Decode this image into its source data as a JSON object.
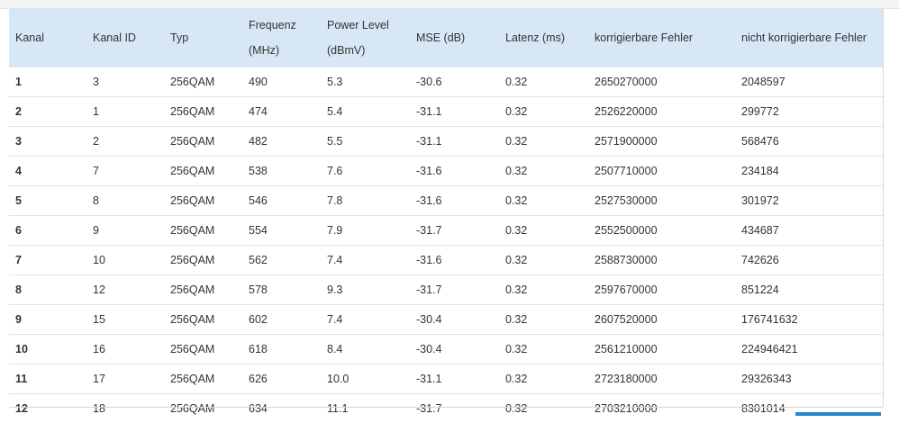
{
  "table": {
    "header": [
      "Kanal",
      "Kanal ID",
      "Typ",
      [
        "Frequenz",
        "(MHz)"
      ],
      [
        "Power Level",
        "(dBmV)"
      ],
      "MSE (dB)",
      "Latenz (ms)",
      "korrigierbare Fehler",
      "nicht korrigierbare Fehler"
    ],
    "rows": [
      [
        "1",
        "3",
        "256QAM",
        "490",
        "5.3",
        "-30.6",
        "0.32",
        "2650270000",
        "2048597"
      ],
      [
        "2",
        "1",
        "256QAM",
        "474",
        "5.4",
        "-31.1",
        "0.32",
        "2526220000",
        "299772"
      ],
      [
        "3",
        "2",
        "256QAM",
        "482",
        "5.5",
        "-31.1",
        "0.32",
        "2571900000",
        "568476"
      ],
      [
        "4",
        "7",
        "256QAM",
        "538",
        "7.6",
        "-31.6",
        "0.32",
        "2507710000",
        "234184"
      ],
      [
        "5",
        "8",
        "256QAM",
        "546",
        "7.8",
        "-31.6",
        "0.32",
        "2527530000",
        "301972"
      ],
      [
        "6",
        "9",
        "256QAM",
        "554",
        "7.9",
        "-31.7",
        "0.32",
        "2552500000",
        "434687"
      ],
      [
        "7",
        "10",
        "256QAM",
        "562",
        "7.4",
        "-31.6",
        "0.32",
        "2588730000",
        "742626"
      ],
      [
        "8",
        "12",
        "256QAM",
        "578",
        "9.3",
        "-31.7",
        "0.32",
        "2597670000",
        "851224"
      ],
      [
        "9",
        "15",
        "256QAM",
        "602",
        "7.4",
        "-30.4",
        "0.32",
        "2607520000",
        "176741632"
      ],
      [
        "10",
        "16",
        "256QAM",
        "618",
        "8.4",
        "-30.4",
        "0.32",
        "2561210000",
        "224946421"
      ],
      [
        "11",
        "17",
        "256QAM",
        "626",
        "10.0",
        "-31.1",
        "0.32",
        "2723180000",
        "29326343"
      ],
      [
        "12",
        "18",
        "256QAM",
        "634",
        "11.1",
        "-31.7",
        "0.32",
        "2703210000",
        "8301014"
      ]
    ]
  }
}
